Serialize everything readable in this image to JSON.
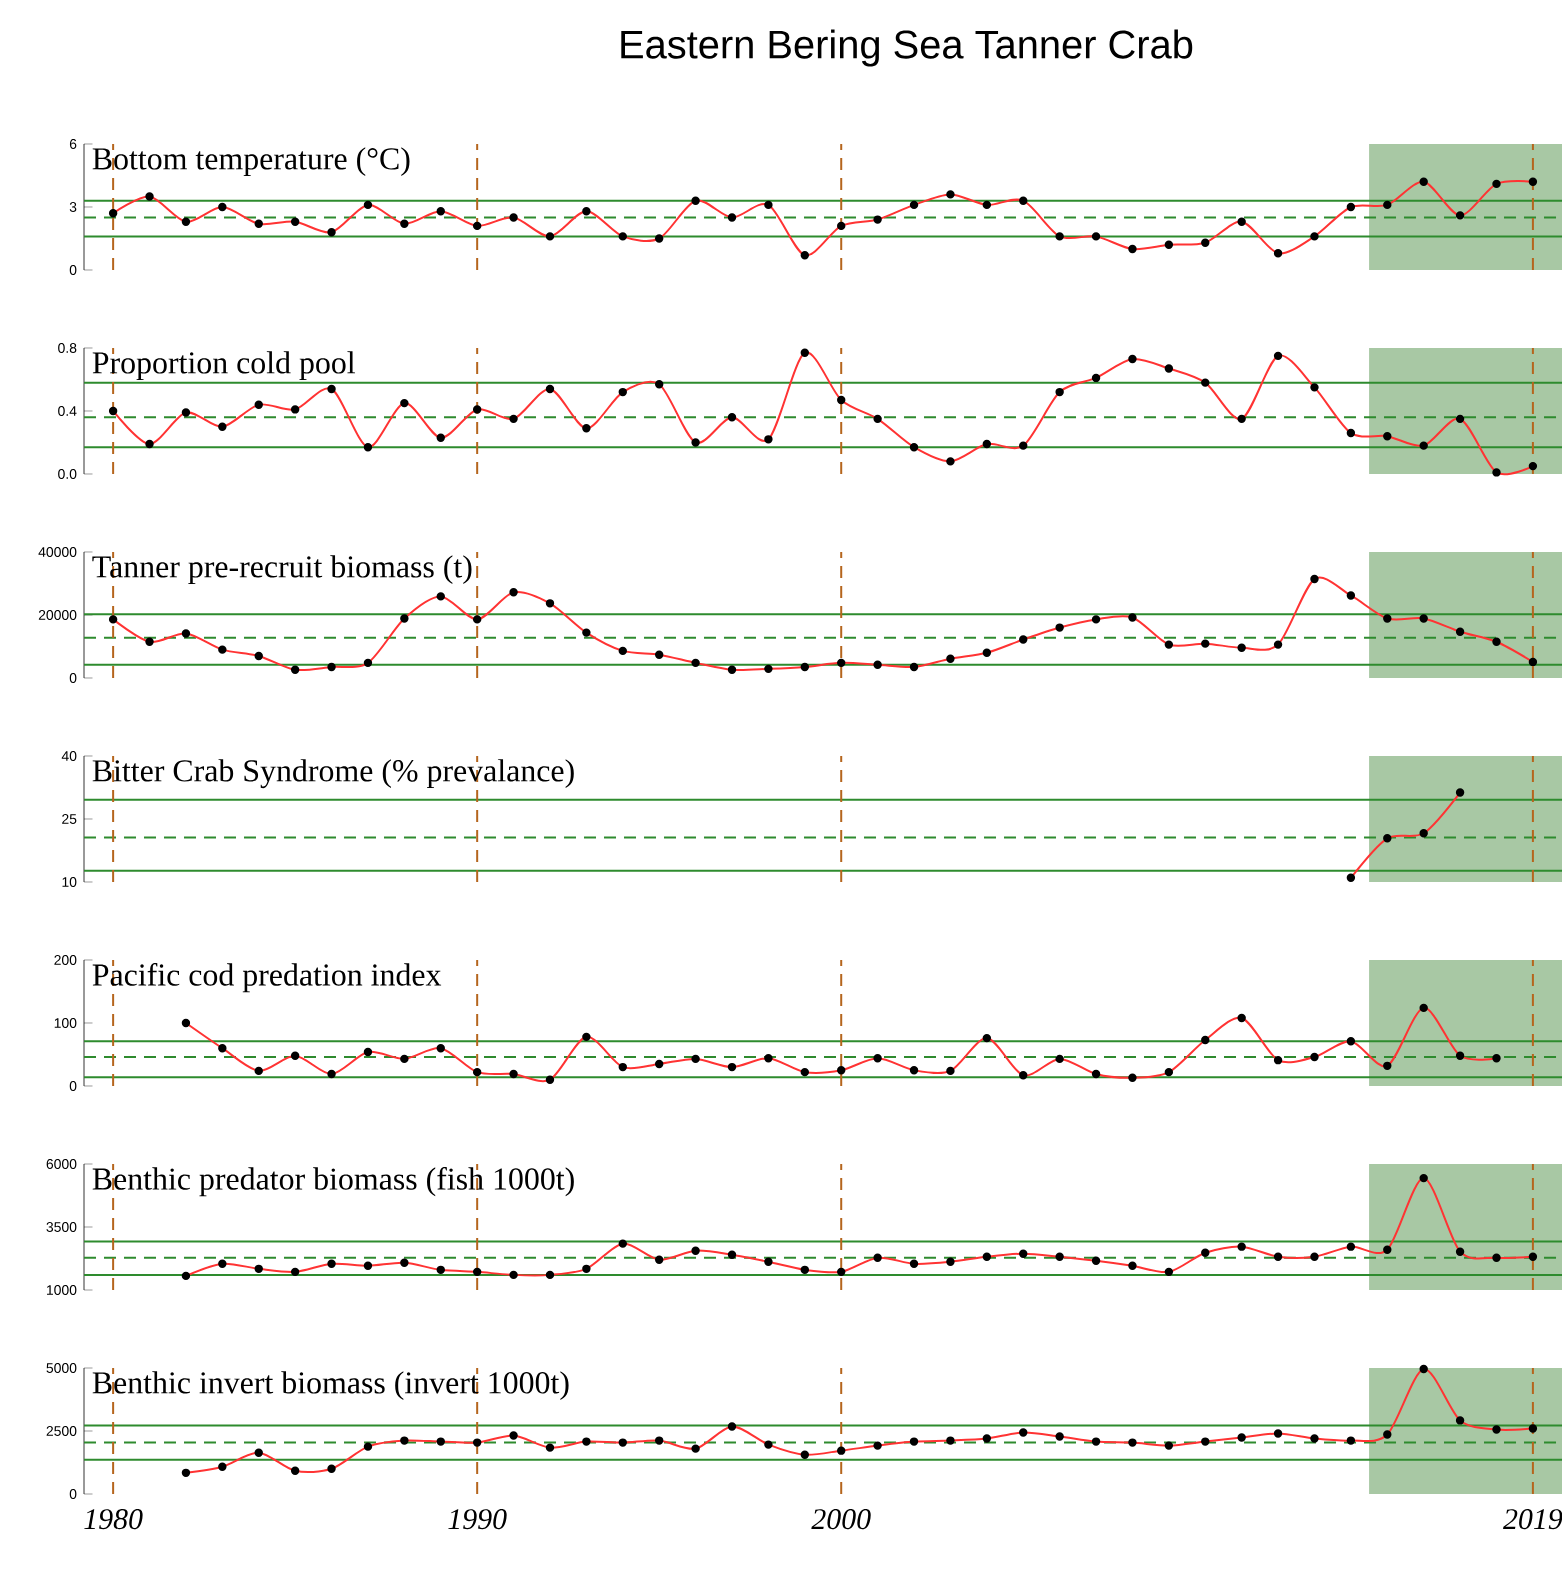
{
  "chart_data": [
    {
      "type": "line",
      "title": "Bottom temperature (°C)",
      "annotations": [
        "Eastern Bering Sea Tanner Crab"
      ],
      "marker": "circle",
      "line_style": "solid",
      "tick_labels": "y",
      "x": [
        1980,
        1981,
        1982,
        1983,
        1984,
        1985,
        1986,
        1987,
        1988,
        1989,
        1990,
        1991,
        1992,
        1993,
        1994,
        1995,
        1996,
        1997,
        1998,
        1999,
        2000,
        2001,
        2002,
        2003,
        2004,
        2005,
        2006,
        2007,
        2008,
        2009,
        2010,
        2011,
        2012,
        2013,
        2014,
        2015,
        2016,
        2017,
        2018,
        2019
      ],
      "series": [
        {
          "color": "#ff3333",
          "values": [
            2.7,
            3.5,
            2.3,
            3.0,
            2.2,
            2.3,
            1.8,
            3.1,
            2.2,
            2.8,
            2.1,
            2.5,
            1.6,
            2.8,
            1.6,
            1.5,
            3.3,
            2.5,
            3.1,
            0.7,
            2.1,
            2.4,
            3.1,
            3.6,
            3.1,
            3.3,
            1.6,
            1.6,
            1.0,
            1.2,
            1.3,
            2.3,
            0.8,
            1.6,
            3.0,
            3.1,
            4.2,
            2.6,
            4.1,
            4.2
          ]
        }
      ],
      "xlim": [
        1979.2,
        2019.8
      ],
      "ylim": [
        0,
        6
      ],
      "yticks": [
        0,
        3,
        6
      ],
      "ref_lines": [
        {
          "axis": "y",
          "value": 2.5,
          "line_style": "dashed",
          "color": "#2e8b2e"
        },
        {
          "axis": "y",
          "value": 3.3,
          "line_style": "solid",
          "color": "#2e8b2e"
        },
        {
          "axis": "y",
          "value": 1.6,
          "line_style": "solid",
          "color": "#2e8b2e"
        },
        {
          "axis": "x",
          "value": 1980,
          "line_style": "dashed",
          "color": "#b5651d"
        },
        {
          "axis": "x",
          "value": 1990,
          "line_style": "dashed",
          "color": "#b5651d"
        },
        {
          "axis": "x",
          "value": 2000,
          "line_style": "dashed",
          "color": "#b5651d"
        },
        {
          "axis": "x",
          "value": 2019,
          "line_style": "dashed",
          "color": "#b5651d"
        }
      ],
      "bands": [
        {
          "axis": "x",
          "from": 2014.5,
          "to": 2019.8,
          "color": "#a8c8a4"
        }
      ]
    },
    {
      "type": "line",
      "title": "Proportion cold pool",
      "marker": "circle",
      "line_style": "solid",
      "tick_labels": "y",
      "x": [
        1980,
        1981,
        1982,
        1983,
        1984,
        1985,
        1986,
        1987,
        1988,
        1989,
        1990,
        1991,
        1992,
        1993,
        1994,
        1995,
        1996,
        1997,
        1998,
        1999,
        2000,
        2001,
        2002,
        2003,
        2004,
        2005,
        2006,
        2007,
        2008,
        2009,
        2010,
        2011,
        2012,
        2013,
        2014,
        2015,
        2016,
        2017,
        2018,
        2019
      ],
      "series": [
        {
          "color": "#ff3333",
          "values": [
            0.4,
            0.19,
            0.39,
            0.3,
            0.44,
            0.41,
            0.54,
            0.17,
            0.45,
            0.23,
            0.41,
            0.35,
            0.54,
            0.29,
            0.52,
            0.57,
            0.2,
            0.36,
            0.22,
            0.77,
            0.47,
            0.35,
            0.17,
            0.08,
            0.19,
            0.18,
            0.52,
            0.61,
            0.73,
            0.67,
            0.58,
            0.35,
            0.75,
            0.55,
            0.26,
            0.24,
            0.18,
            0.35,
            0.01,
            0.05
          ]
        }
      ],
      "xlim": [
        1979.2,
        2019.8
      ],
      "ylim": [
        0,
        0.8
      ],
      "yticks": [
        {
          "value": 0,
          "label": "0.0"
        },
        {
          "value": 0.4,
          "label": "0.4"
        },
        {
          "value": 0.8,
          "label": "0.8"
        }
      ],
      "ref_lines": [
        {
          "axis": "y",
          "value": 0.36,
          "line_style": "dashed",
          "color": "#2e8b2e"
        },
        {
          "axis": "y",
          "value": 0.58,
          "line_style": "solid",
          "color": "#2e8b2e"
        },
        {
          "axis": "y",
          "value": 0.17,
          "line_style": "solid",
          "color": "#2e8b2e"
        },
        {
          "axis": "x",
          "value": 1980,
          "line_style": "dashed",
          "color": "#b5651d"
        },
        {
          "axis": "x",
          "value": 1990,
          "line_style": "dashed",
          "color": "#b5651d"
        },
        {
          "axis": "x",
          "value": 2000,
          "line_style": "dashed",
          "color": "#b5651d"
        },
        {
          "axis": "x",
          "value": 2019,
          "line_style": "dashed",
          "color": "#b5651d"
        }
      ],
      "bands": [
        {
          "axis": "x",
          "from": 2014.5,
          "to": 2019.8,
          "color": "#a8c8a4"
        }
      ]
    },
    {
      "type": "line",
      "title": "Tanner pre-recruit biomass (t)",
      "marker": "circle",
      "line_style": "solid",
      "tick_labels": "y",
      "x": [
        1980,
        1981,
        1982,
        1983,
        1984,
        1985,
        1986,
        1987,
        1988,
        1989,
        1990,
        1991,
        1992,
        1993,
        1994,
        1995,
        1996,
        1997,
        1998,
        1999,
        2000,
        2001,
        2002,
        2003,
        2004,
        2005,
        2006,
        2007,
        2008,
        2009,
        2010,
        2011,
        2012,
        2013,
        2014,
        2015,
        2016,
        2017,
        2018,
        2019
      ],
      "series": [
        {
          "color": "#ff3333",
          "values": [
            18600,
            11500,
            14100,
            9000,
            7000,
            2600,
            3500,
            4800,
            18900,
            25900,
            18600,
            27200,
            23700,
            14400,
            8600,
            7400,
            4800,
            2600,
            2900,
            3500,
            4800,
            4200,
            3500,
            6100,
            8000,
            12200,
            16000,
            18600,
            19200,
            10600,
            10900,
            9600,
            10600,
            31400,
            26200,
            18900,
            18900,
            14700,
            11500,
            5100
          ]
        }
      ],
      "xlim": [
        1979.2,
        2019.8
      ],
      "ylim": [
        0,
        40000
      ],
      "yticks": [
        0,
        20000,
        40000
      ],
      "ref_lines": [
        {
          "axis": "y",
          "value": 12800,
          "line_style": "dashed",
          "color": "#2e8b2e"
        },
        {
          "axis": "y",
          "value": 20200,
          "line_style": "solid",
          "color": "#2e8b2e"
        },
        {
          "axis": "y",
          "value": 4200,
          "line_style": "solid",
          "color": "#2e8b2e"
        },
        {
          "axis": "x",
          "value": 1980,
          "line_style": "dashed",
          "color": "#b5651d"
        },
        {
          "axis": "x",
          "value": 1990,
          "line_style": "dashed",
          "color": "#b5651d"
        },
        {
          "axis": "x",
          "value": 2000,
          "line_style": "dashed",
          "color": "#b5651d"
        },
        {
          "axis": "x",
          "value": 2019,
          "line_style": "dashed",
          "color": "#b5651d"
        }
      ],
      "bands": [
        {
          "axis": "x",
          "from": 2014.5,
          "to": 2019.8,
          "color": "#a8c8a4"
        }
      ]
    },
    {
      "type": "line",
      "title": "Bitter Crab Syndrome (% prevalance)",
      "marker": "circle",
      "line_style": "solid",
      "tick_labels": "y",
      "series": [
        {
          "color": "#ff3333",
          "x": [
            2014,
            2015,
            2016,
            2017
          ],
          "values": [
            11.0,
            20.4,
            21.6,
            31.3
          ]
        }
      ],
      "xlim": [
        1979.2,
        2019.8
      ],
      "ylim": [
        10,
        40
      ],
      "yticks": [
        10,
        25,
        40
      ],
      "ref_lines": [
        {
          "axis": "y",
          "value": 20.6,
          "line_style": "dashed",
          "color": "#2e8b2e"
        },
        {
          "axis": "y",
          "value": 29.6,
          "line_style": "solid",
          "color": "#2e8b2e"
        },
        {
          "axis": "y",
          "value": 12.7,
          "line_style": "solid",
          "color": "#2e8b2e"
        },
        {
          "axis": "x",
          "value": 1980,
          "line_style": "dashed",
          "color": "#b5651d"
        },
        {
          "axis": "x",
          "value": 1990,
          "line_style": "dashed",
          "color": "#b5651d"
        },
        {
          "axis": "x",
          "value": 2000,
          "line_style": "dashed",
          "color": "#b5651d"
        },
        {
          "axis": "x",
          "value": 2019,
          "line_style": "dashed",
          "color": "#b5651d"
        }
      ],
      "bands": [
        {
          "axis": "x",
          "from": 2014.5,
          "to": 2019.8,
          "color": "#a8c8a4"
        }
      ]
    },
    {
      "type": "line",
      "title": "Pacific cod predation index",
      "marker": "circle",
      "line_style": "solid",
      "tick_labels": "y",
      "series": [
        {
          "color": "#ff3333",
          "x": [
            1982,
            1983,
            1984,
            1985,
            1986,
            1987,
            1988,
            1989,
            1990,
            1991,
            1992,
            1993,
            1994,
            1995,
            1996,
            1997,
            1998,
            1999,
            2000,
            2001,
            2002,
            2003,
            2004,
            2005,
            2006,
            2007,
            2008,
            2009,
            2010,
            2011,
            2012,
            2013,
            2014,
            2015,
            2016,
            2017,
            2018
          ],
          "values": [
            100,
            60,
            24,
            48,
            19,
            54,
            43,
            60,
            22,
            19,
            10,
            78,
            30,
            35,
            43,
            30,
            44,
            22,
            25,
            44,
            25,
            24,
            76,
            17,
            43,
            19,
            13,
            22,
            73,
            108,
            41,
            46,
            71,
            32,
            124,
            48,
            44
          ]
        }
      ],
      "xlim": [
        1979.2,
        2019.8
      ],
      "ylim": [
        0,
        200
      ],
      "yticks": [
        0,
        100,
        200
      ],
      "ref_lines": [
        {
          "axis": "y",
          "value": 46,
          "line_style": "dashed",
          "color": "#2e8b2e"
        },
        {
          "axis": "y",
          "value": 71,
          "line_style": "solid",
          "color": "#2e8b2e"
        },
        {
          "axis": "y",
          "value": 14,
          "line_style": "solid",
          "color": "#2e8b2e"
        },
        {
          "axis": "x",
          "value": 1980,
          "line_style": "dashed",
          "color": "#b5651d"
        },
        {
          "axis": "x",
          "value": 1990,
          "line_style": "dashed",
          "color": "#b5651d"
        },
        {
          "axis": "x",
          "value": 2000,
          "line_style": "dashed",
          "color": "#b5651d"
        },
        {
          "axis": "x",
          "value": 2019,
          "line_style": "dashed",
          "color": "#b5651d"
        }
      ],
      "bands": [
        {
          "axis": "x",
          "from": 2014.5,
          "to": 2019.8,
          "color": "#a8c8a4"
        }
      ]
    },
    {
      "type": "line",
      "title": "Benthic predator biomass (fish 1000t)",
      "marker": "circle",
      "line_style": "solid",
      "tick_labels": "y",
      "series": [
        {
          "color": "#ff3333",
          "x": [
            1982,
            1983,
            1984,
            1985,
            1986,
            1987,
            1988,
            1989,
            1990,
            1991,
            1992,
            1993,
            1994,
            1995,
            1996,
            1997,
            1998,
            1999,
            2000,
            2001,
            2002,
            2003,
            2004,
            2005,
            2006,
            2007,
            2008,
            2009,
            2010,
            2011,
            2012,
            2013,
            2014,
            2015,
            2016,
            2017,
            2018,
            2019
          ],
          "values": [
            1560,
            2040,
            1840,
            1720,
            2040,
            1960,
            2080,
            1800,
            1720,
            1600,
            1600,
            1840,
            2840,
            2200,
            2560,
            2400,
            2120,
            1800,
            1720,
            2280,
            2040,
            2120,
            2320,
            2440,
            2320,
            2160,
            1960,
            1720,
            2480,
            2720,
            2320,
            2320,
            2720,
            2600,
            5440,
            2520,
            2280,
            2320
          ]
        }
      ],
      "xlim": [
        1979.2,
        2019.8
      ],
      "ylim": [
        1000,
        6000
      ],
      "yticks": [
        1000,
        3500,
        6000
      ],
      "ref_lines": [
        {
          "axis": "y",
          "value": 2280,
          "line_style": "dashed",
          "color": "#2e8b2e"
        },
        {
          "axis": "y",
          "value": 2920,
          "line_style": "solid",
          "color": "#2e8b2e"
        },
        {
          "axis": "y",
          "value": 1600,
          "line_style": "solid",
          "color": "#2e8b2e"
        },
        {
          "axis": "x",
          "value": 1980,
          "line_style": "dashed",
          "color": "#b5651d"
        },
        {
          "axis": "x",
          "value": 1990,
          "line_style": "dashed",
          "color": "#b5651d"
        },
        {
          "axis": "x",
          "value": 2000,
          "line_style": "dashed",
          "color": "#b5651d"
        },
        {
          "axis": "x",
          "value": 2019,
          "line_style": "dashed",
          "color": "#b5651d"
        }
      ],
      "bands": [
        {
          "axis": "x",
          "from": 2014.5,
          "to": 2019.8,
          "color": "#a8c8a4"
        }
      ]
    },
    {
      "type": "line",
      "title": "Benthic invert biomass (invert 1000t)",
      "marker": "circle",
      "line_style": "solid",
      "series": [
        {
          "color": "#ff3333",
          "x": [
            1982,
            1983,
            1984,
            1985,
            1986,
            1987,
            1988,
            1989,
            1990,
            1991,
            1992,
            1993,
            1994,
            1995,
            1996,
            1997,
            1998,
            1999,
            2000,
            2001,
            2002,
            2003,
            2004,
            2005,
            2006,
            2007,
            2008,
            2009,
            2010,
            2011,
            2012,
            2013,
            2014,
            2015,
            2016,
            2017,
            2018,
            2019
          ],
          "values": [
            840,
            1080,
            1640,
            920,
            1000,
            1880,
            2120,
            2080,
            2040,
            2320,
            1840,
            2080,
            2040,
            2120,
            1800,
            2680,
            1960,
            1560,
            1720,
            1920,
            2080,
            2120,
            2200,
            2440,
            2280,
            2080,
            2040,
            1920,
            2080,
            2240,
            2400,
            2200,
            2120,
            2360,
            4960,
            2920,
            2560,
            2600
          ]
        }
      ],
      "xlim": [
        1979.2,
        2019.8
      ],
      "xticks": [
        1980,
        1990,
        2000,
        2019
      ],
      "ylim": [
        0,
        5000
      ],
      "yticks": [
        0,
        2500,
        5000
      ],
      "ref_lines": [
        {
          "axis": "y",
          "value": 2040,
          "line_style": "dashed",
          "color": "#2e8b2e"
        },
        {
          "axis": "y",
          "value": 2720,
          "line_style": "solid",
          "color": "#2e8b2e"
        },
        {
          "axis": "y",
          "value": 1360,
          "line_style": "solid",
          "color": "#2e8b2e"
        },
        {
          "axis": "x",
          "value": 1980,
          "line_style": "dashed",
          "color": "#b5651d"
        },
        {
          "axis": "x",
          "value": 1990,
          "line_style": "dashed",
          "color": "#b5651d"
        },
        {
          "axis": "x",
          "value": 2000,
          "line_style": "dashed",
          "color": "#b5651d"
        },
        {
          "axis": "x",
          "value": 2019,
          "line_style": "dashed",
          "color": "#b5651d"
        }
      ],
      "bands": [
        {
          "axis": "x",
          "from": 2014.5,
          "to": 2019.8,
          "color": "#a8c8a4"
        }
      ]
    }
  ]
}
